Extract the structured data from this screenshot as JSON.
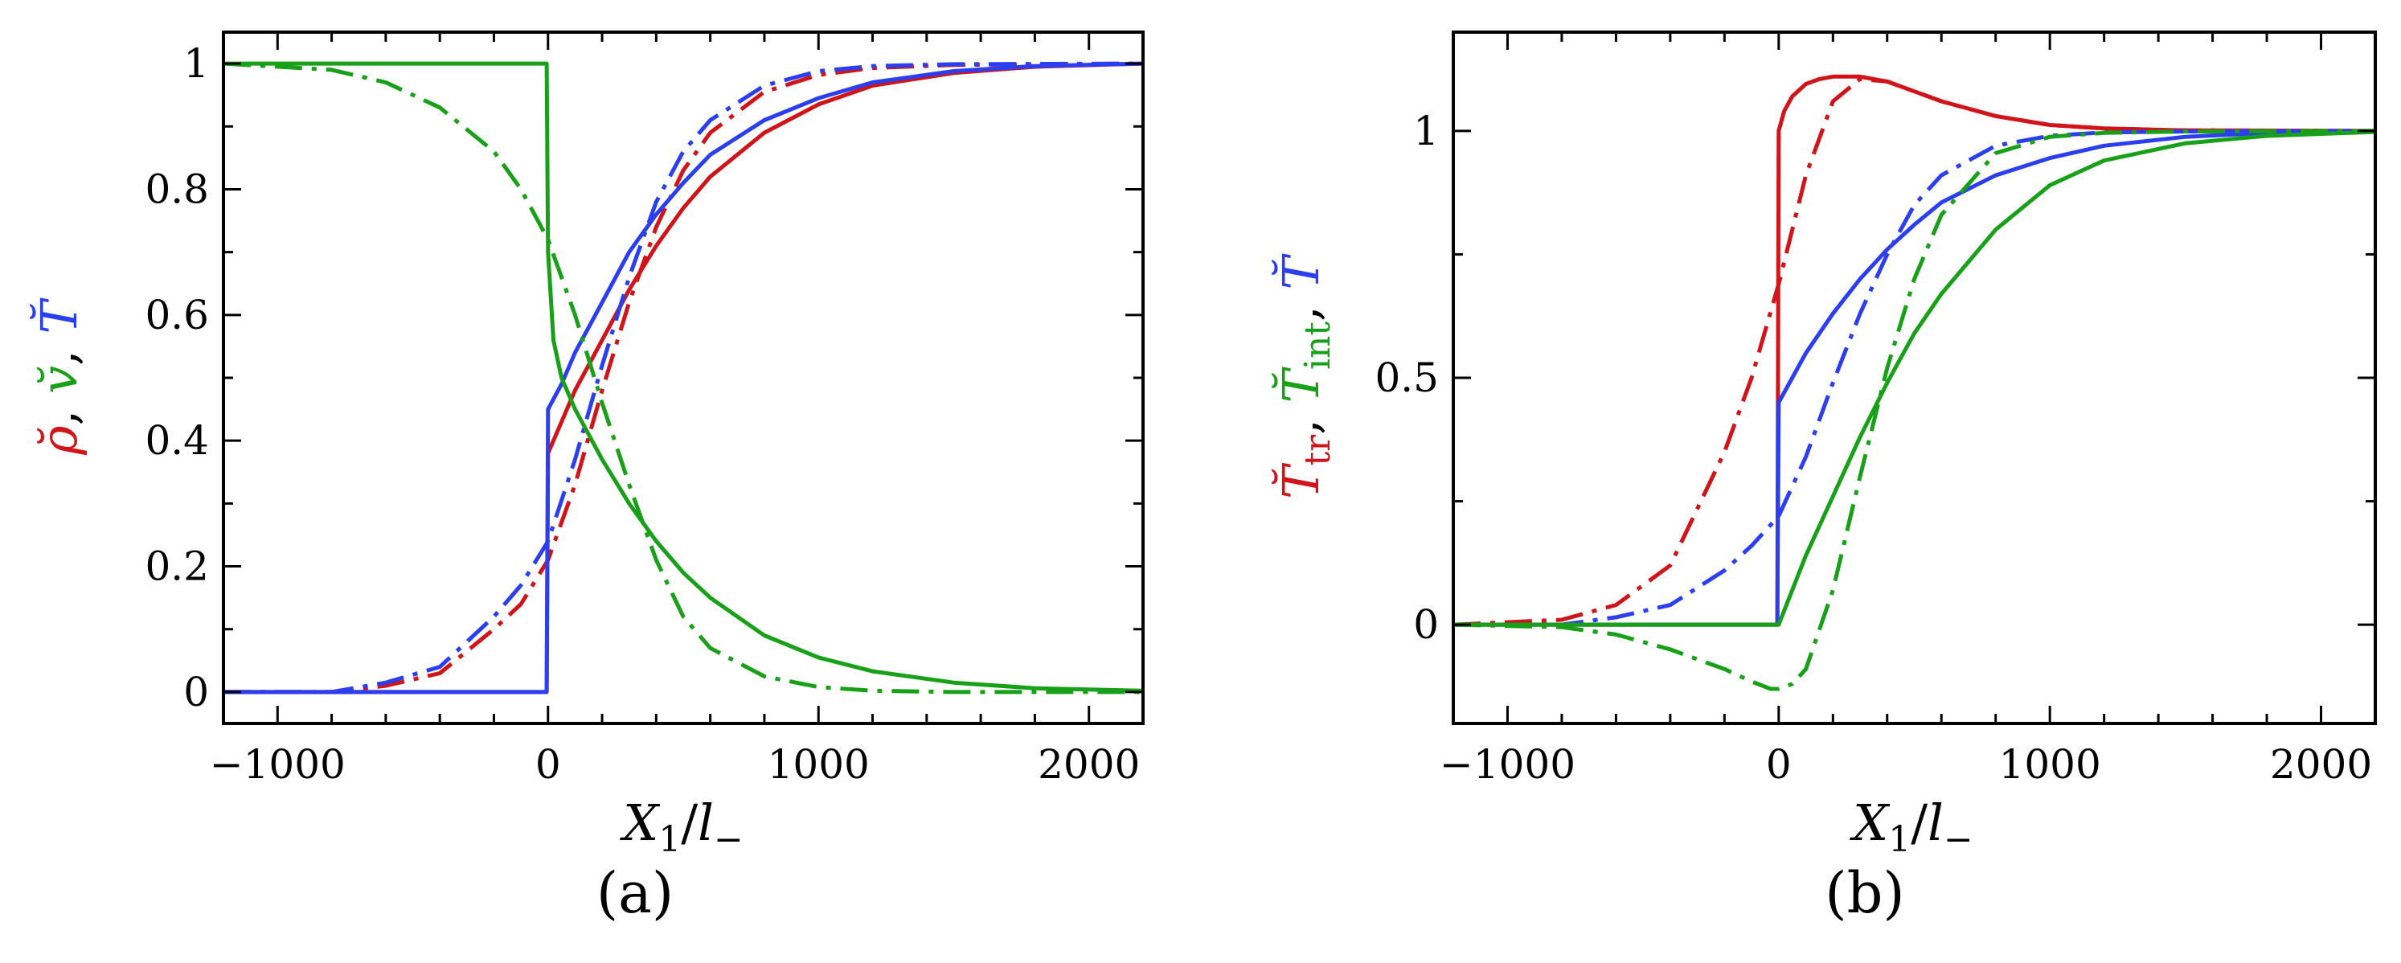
{
  "colors": {
    "red": "#d0141a",
    "green": "#18a018",
    "blue": "#2b3ff0"
  },
  "chart_data": [
    {
      "type": "line",
      "panel_label": "(a)",
      "xlabel": {
        "main": "X",
        "sub1": "1",
        "slash": "/",
        "l": "l",
        "sub2": "−"
      },
      "ylabel_parts": [
        {
          "text": "ρ̆",
          "color": "red"
        },
        {
          "text": ", ",
          "color": "black"
        },
        {
          "text": "v̆",
          "color": "green"
        },
        {
          "text": ", ",
          "color": "black"
        },
        {
          "text": "T̆",
          "color": "blue"
        }
      ],
      "xlim": [
        -1200,
        2200
      ],
      "ylim": [
        -0.05,
        1.05
      ],
      "xticks": [
        -1000,
        0,
        1000,
        2000
      ],
      "xtick_labels": [
        "−1000",
        "0",
        "1000",
        "2000"
      ],
      "yticks": [
        0,
        0.2,
        0.4,
        0.6,
        0.8,
        1
      ],
      "ytick_labels": [
        "0",
        "0.2",
        "0.4",
        "0.6",
        "0.8",
        "1"
      ],
      "series": [
        {
          "name": "rho-solid",
          "color": "red",
          "style": "solid",
          "x": [
            -1200,
            -5,
            0,
            50,
            100,
            200,
            300,
            400,
            500,
            600,
            800,
            1000,
            1200,
            1500,
            1800,
            2200
          ],
          "y": [
            0,
            0,
            0.38,
            0.43,
            0.48,
            0.56,
            0.64,
            0.71,
            0.77,
            0.82,
            0.89,
            0.935,
            0.965,
            0.985,
            0.995,
            1
          ]
        },
        {
          "name": "rho-dashdot",
          "color": "red",
          "style": "dashdot",
          "x": [
            -1200,
            -800,
            -600,
            -400,
            -200,
            -100,
            0,
            100,
            200,
            300,
            400,
            500,
            600,
            800,
            1000,
            1200,
            1500,
            2200
          ],
          "y": [
            0,
            0,
            0.01,
            0.03,
            0.1,
            0.14,
            0.21,
            0.33,
            0.48,
            0.62,
            0.74,
            0.83,
            0.89,
            0.955,
            0.982,
            0.993,
            0.998,
            1
          ]
        },
        {
          "name": "T-solid",
          "color": "blue",
          "style": "solid",
          "x": [
            -1200,
            -5,
            0,
            50,
            100,
            200,
            300,
            400,
            500,
            600,
            800,
            1000,
            1200,
            1500,
            1800,
            2200
          ],
          "y": [
            0,
            0,
            0.45,
            0.49,
            0.54,
            0.62,
            0.7,
            0.76,
            0.81,
            0.855,
            0.91,
            0.945,
            0.97,
            0.988,
            0.996,
            1
          ]
        },
        {
          "name": "T-dashdot",
          "color": "blue",
          "style": "dashdot",
          "x": [
            -1200,
            -800,
            -600,
            -400,
            -200,
            -100,
            0,
            100,
            200,
            300,
            400,
            500,
            600,
            800,
            1000,
            1200,
            1500,
            2200
          ],
          "y": [
            0,
            0,
            0.015,
            0.04,
            0.12,
            0.17,
            0.24,
            0.37,
            0.52,
            0.66,
            0.78,
            0.86,
            0.91,
            0.965,
            0.988,
            0.996,
            0.999,
            1
          ]
        },
        {
          "name": "v-solid",
          "color": "green",
          "style": "solid",
          "x": [
            -1200,
            -800,
            -5,
            0,
            20,
            50,
            100,
            200,
            300,
            400,
            500,
            600,
            800,
            1000,
            1200,
            1500,
            1800,
            2200
          ],
          "y": [
            1,
            1,
            1,
            0.7,
            0.56,
            0.5,
            0.45,
            0.37,
            0.3,
            0.24,
            0.19,
            0.15,
            0.09,
            0.055,
            0.033,
            0.015,
            0.006,
            0.002
          ]
        },
        {
          "name": "v-dashdot",
          "color": "green",
          "style": "dashdot",
          "x": [
            -1200,
            -800,
            -600,
            -400,
            -200,
            -100,
            0,
            100,
            200,
            300,
            400,
            500,
            600,
            800,
            1000,
            1200,
            1500,
            2200
          ],
          "y": [
            1,
            0.99,
            0.97,
            0.93,
            0.86,
            0.8,
            0.72,
            0.6,
            0.46,
            0.33,
            0.21,
            0.12,
            0.07,
            0.025,
            0.008,
            0.002,
            0,
            0
          ]
        }
      ]
    },
    {
      "type": "line",
      "panel_label": "(b)",
      "xlabel": {
        "main": "X",
        "sub1": "1",
        "slash": "/",
        "l": "l",
        "sub2": "−"
      },
      "ylabel_parts": [
        {
          "text": "T̆",
          "color": "red"
        },
        {
          "text": "tr",
          "color": "red",
          "sub": true
        },
        {
          "text": ", ",
          "color": "black"
        },
        {
          "text": "T̆",
          "color": "green"
        },
        {
          "text": "int",
          "color": "green",
          "sub": true
        },
        {
          "text": ", ",
          "color": "black"
        },
        {
          "text": "T̆",
          "color": "blue"
        }
      ],
      "xlim": [
        -1200,
        2200
      ],
      "ylim": [
        -0.2,
        1.2
      ],
      "xticks": [
        -1000,
        0,
        1000,
        2000
      ],
      "xtick_labels": [
        "−1000",
        "0",
        "1000",
        "2000"
      ],
      "yticks": [
        0,
        0.5,
        1
      ],
      "ytick_labels": [
        "0",
        "0.5",
        "1"
      ],
      "series": [
        {
          "name": "Ttr-solid",
          "color": "red",
          "style": "solid",
          "x": [
            -1200,
            -5,
            0,
            20,
            50,
            100,
            150,
            200,
            300,
            400,
            500,
            600,
            800,
            1000,
            1200,
            1500,
            2200
          ],
          "y": [
            0,
            0,
            1.0,
            1.04,
            1.07,
            1.095,
            1.105,
            1.11,
            1.11,
            1.1,
            1.08,
            1.06,
            1.03,
            1.012,
            1.005,
            1.001,
            1
          ]
        },
        {
          "name": "Ttr-dashdot",
          "color": "red",
          "style": "dashdot",
          "x": [
            -1200,
            -800,
            -600,
            -400,
            -200,
            -100,
            0,
            100,
            200,
            300,
            400,
            500,
            600,
            800,
            1000,
            1200,
            1500,
            2200
          ],
          "y": [
            0,
            0.01,
            0.04,
            0.12,
            0.35,
            0.5,
            0.69,
            0.91,
            1.06,
            1.105,
            1.1,
            1.08,
            1.06,
            1.03,
            1.012,
            1.005,
            1.001,
            1
          ]
        },
        {
          "name": "T-solid",
          "color": "blue",
          "style": "solid",
          "x": [
            -1200,
            -5,
            0,
            50,
            100,
            200,
            300,
            400,
            500,
            600,
            800,
            1000,
            1200,
            1500,
            1800,
            2200
          ],
          "y": [
            0,
            0,
            0.45,
            0.5,
            0.55,
            0.63,
            0.7,
            0.76,
            0.81,
            0.855,
            0.91,
            0.945,
            0.97,
            0.988,
            0.996,
            1
          ]
        },
        {
          "name": "T-dashdot",
          "color": "blue",
          "style": "dashdot",
          "x": [
            -1200,
            -800,
            -600,
            -400,
            -200,
            -100,
            0,
            100,
            200,
            300,
            400,
            500,
            600,
            800,
            1000,
            1200,
            1500,
            2200
          ],
          "y": [
            0,
            0,
            0.015,
            0.04,
            0.11,
            0.16,
            0.22,
            0.34,
            0.49,
            0.63,
            0.75,
            0.85,
            0.91,
            0.97,
            0.99,
            0.997,
            0.999,
            1
          ]
        },
        {
          "name": "Tint-solid",
          "color": "green",
          "style": "solid",
          "x": [
            -1200,
            0,
            50,
            100,
            200,
            300,
            400,
            500,
            600,
            800,
            1000,
            1200,
            1500,
            1800,
            2200
          ],
          "y": [
            0,
            0,
            0.07,
            0.14,
            0.26,
            0.38,
            0.49,
            0.59,
            0.67,
            0.8,
            0.89,
            0.94,
            0.975,
            0.99,
            0.998
          ]
        },
        {
          "name": "Tint-dashdot",
          "color": "green",
          "style": "dashdot",
          "x": [
            -1200,
            -800,
            -600,
            -400,
            -200,
            -100,
            -30,
            0,
            50,
            100,
            200,
            300,
            400,
            500,
            600,
            800,
            1000,
            1200,
            1500,
            2200
          ],
          "y": [
            0,
            -0.005,
            -0.02,
            -0.05,
            -0.09,
            -0.115,
            -0.13,
            -0.13,
            -0.12,
            -0.09,
            0.07,
            0.3,
            0.52,
            0.7,
            0.83,
            0.955,
            0.988,
            0.996,
            0.999,
            1
          ]
        }
      ]
    }
  ]
}
